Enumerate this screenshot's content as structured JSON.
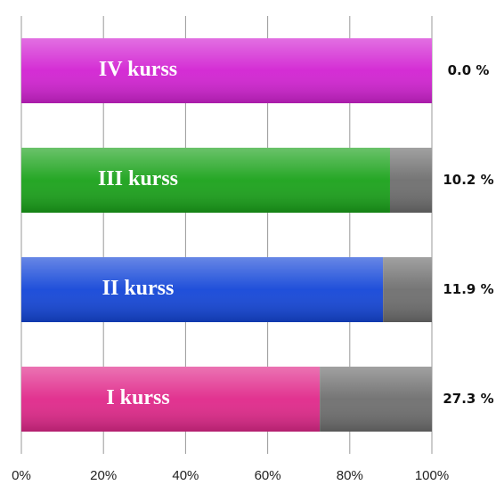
{
  "chart_data": {
    "type": "stacked_barh",
    "categories": [
      "I kurss",
      "II kurss",
      "III kurss",
      "IV kurss"
    ],
    "series": [
      {
        "colors": [
          "#e0288a",
          "#1446d8",
          "#1aa21a",
          "#d222d2"
        ],
        "values": [
          72.7,
          88.1,
          89.8,
          100.0
        ]
      },
      {
        "color": "#6e6e6e",
        "values": [
          27.3,
          11.9,
          10.2,
          0.0
        ],
        "value_labels": [
          "27.3 %",
          "11.9 %",
          "10.2 %",
          "0.0 %"
        ]
      }
    ],
    "xlim": [
      0,
      100
    ],
    "xticks": [
      {
        "value": 0,
        "label": "0%"
      },
      {
        "value": 20,
        "label": "20%"
      },
      {
        "value": 40,
        "label": "40%"
      },
      {
        "value": 60,
        "label": "60%"
      },
      {
        "value": 80,
        "label": "80%"
      },
      {
        "value": 100,
        "label": "100%"
      }
    ],
    "grid": true
  }
}
